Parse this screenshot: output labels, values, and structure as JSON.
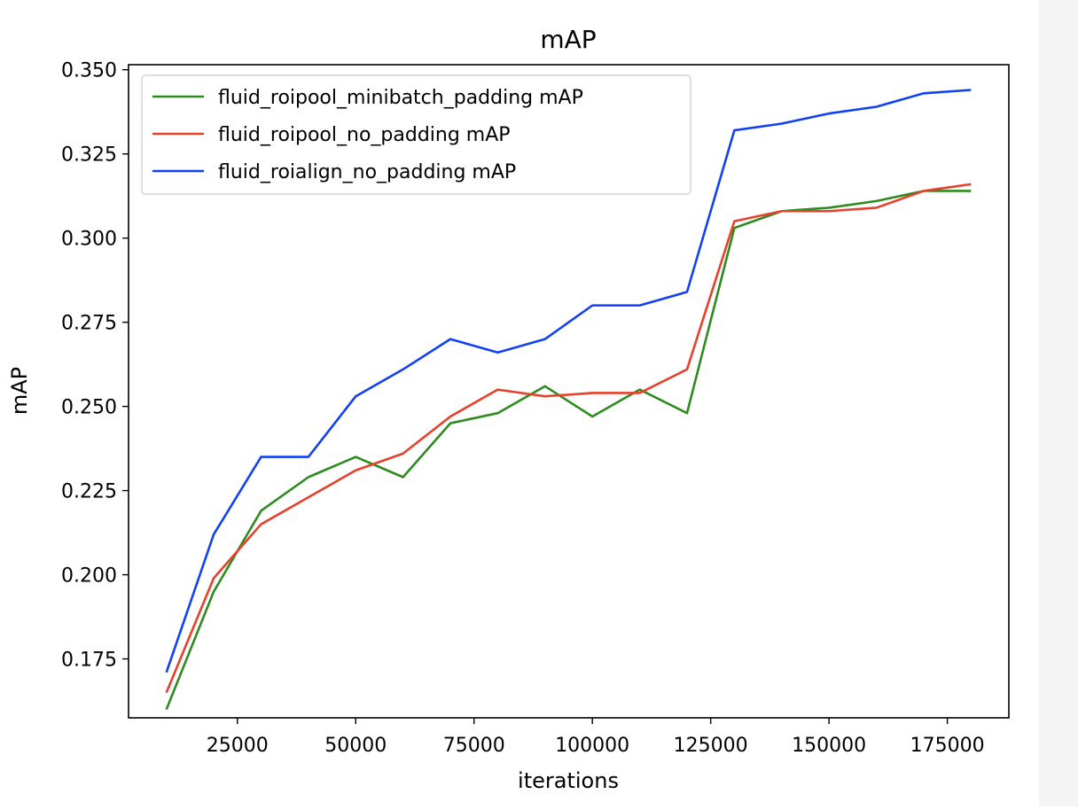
{
  "chart_data": {
    "type": "line",
    "title": "mAP",
    "xlabel": "iterations",
    "ylabel": "mAP",
    "xlim": [
      2000,
      188000
    ],
    "ylim": [
      0.1575,
      0.3515
    ],
    "xticks": [
      25000,
      50000,
      75000,
      100000,
      125000,
      150000,
      175000
    ],
    "xtick_labels": [
      "25000",
      "50000",
      "75000",
      "100000",
      "125000",
      "150000",
      "175000"
    ],
    "yticks": [
      0.175,
      0.2,
      0.225,
      0.25,
      0.275,
      0.3,
      0.325,
      0.35
    ],
    "ytick_labels": [
      "0.175",
      "0.200",
      "0.225",
      "0.250",
      "0.275",
      "0.300",
      "0.325",
      "0.350"
    ],
    "grid": false,
    "legend_position": "top-left",
    "x": [
      10000,
      20000,
      30000,
      40000,
      50000,
      60000,
      70000,
      80000,
      90000,
      100000,
      110000,
      120000,
      130000,
      140000,
      150000,
      160000,
      170000,
      180000
    ],
    "series": [
      {
        "name": "fluid_roipool_minibatch_padding mAP",
        "color": "#2e8b1f",
        "values": [
          0.16,
          0.195,
          0.219,
          0.229,
          0.235,
          0.229,
          0.245,
          0.248,
          0.256,
          0.247,
          0.255,
          0.248,
          0.303,
          0.308,
          0.309,
          0.311,
          0.314,
          0.314
        ]
      },
      {
        "name": "fluid_roipool_no_padding mAP",
        "color": "#e8412b",
        "values": [
          0.165,
          0.199,
          0.215,
          0.223,
          0.231,
          0.236,
          0.247,
          0.255,
          0.253,
          0.254,
          0.254,
          0.261,
          0.305,
          0.308,
          0.308,
          0.309,
          0.314,
          0.316
        ]
      },
      {
        "name": "fluid_roialign_no_padding mAP",
        "color": "#1240f5",
        "values": [
          0.171,
          0.212,
          0.235,
          0.235,
          0.253,
          0.261,
          0.27,
          0.266,
          0.27,
          0.28,
          0.28,
          0.284,
          0.332,
          0.334,
          0.337,
          0.339,
          0.343,
          0.344
        ]
      }
    ]
  }
}
